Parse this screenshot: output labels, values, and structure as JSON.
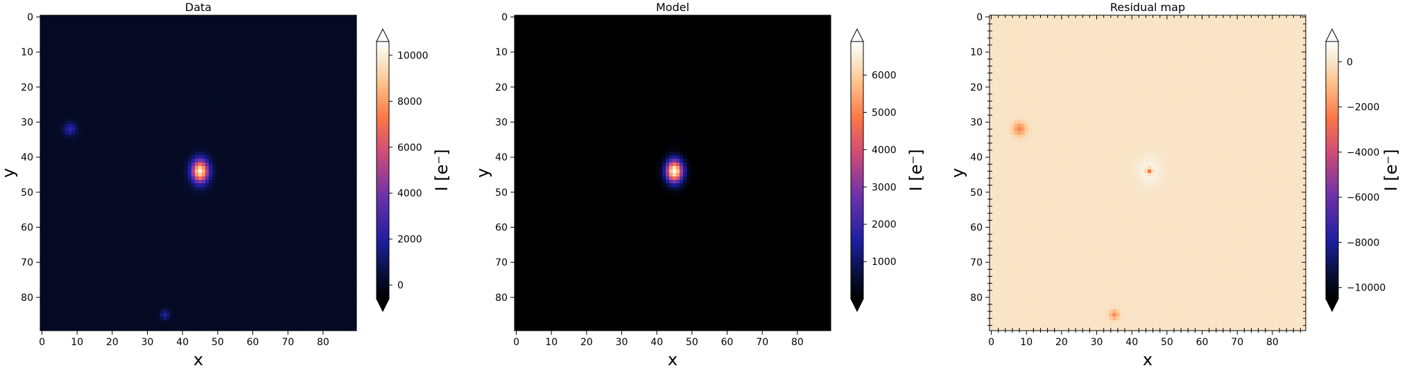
{
  "chart_data": [
    {
      "type": "heatmap",
      "title": "Data",
      "xlabel": "x",
      "ylabel": "y",
      "colorbar_label": "I [e⁻]",
      "colormap": "cmr.ember",
      "colorbar_extend": "both",
      "xlim": [
        -0.5,
        89.5
      ],
      "ylim": [
        89.5,
        -0.5
      ],
      "xticks": [
        0,
        10,
        20,
        30,
        40,
        50,
        60,
        70,
        80
      ],
      "yticks": [
        0,
        10,
        20,
        30,
        40,
        50,
        60,
        70,
        80
      ],
      "clim": [
        -600,
        10600
      ],
      "colorbar_ticks": [
        0,
        2000,
        4000,
        6000,
        8000,
        10000
      ],
      "minor_ticks": false,
      "background_level": 60,
      "sources": [
        {
          "x": 45,
          "y": 44,
          "peak": 10000,
          "sigma_x": 1.7,
          "sigma_y": 2.3
        },
        {
          "x": 8,
          "y": 32,
          "peak": 2200,
          "sigma_x": 1.3,
          "sigma_y": 1.3
        },
        {
          "x": 35,
          "y": 85,
          "peak": 2100,
          "sigma_x": 0.9,
          "sigma_y": 0.9
        }
      ]
    },
    {
      "type": "heatmap",
      "title": "Model",
      "xlabel": "x",
      "ylabel": "y",
      "colorbar_label": "I [e⁻]",
      "colormap": "cmr.ember",
      "colorbar_extend": "both",
      "xlim": [
        -0.5,
        89.5
      ],
      "ylim": [
        89.5,
        -0.5
      ],
      "xticks": [
        0,
        10,
        20,
        30,
        40,
        50,
        60,
        70,
        80
      ],
      "yticks": [
        0,
        10,
        20,
        30,
        40,
        50,
        60,
        70,
        80
      ],
      "clim": [
        0,
        6900
      ],
      "colorbar_ticks": [
        1000,
        2000,
        3000,
        4000,
        5000,
        6000
      ],
      "minor_ticks": false,
      "background_level": 0,
      "sources": [
        {
          "x": 45,
          "y": 44,
          "peak": 6900,
          "sigma_x": 1.7,
          "sigma_y": 2.3
        }
      ]
    },
    {
      "type": "heatmap",
      "title": "Residual map",
      "xlabel": "x",
      "ylabel": "y",
      "colorbar_label": "I [e⁻]",
      "colormap": "cmr.ember",
      "colorbar_extend": "both",
      "xlim": [
        -0.5,
        89.5
      ],
      "ylim": [
        89.5,
        -0.5
      ],
      "xticks": [
        0,
        10,
        20,
        30,
        40,
        50,
        60,
        70,
        80
      ],
      "yticks": [
        0,
        10,
        20,
        30,
        40,
        50,
        60,
        70,
        80
      ],
      "clim": [
        -10500,
        900
      ],
      "colorbar_ticks": [
        0,
        -2000,
        -4000,
        -6000,
        -8000,
        -10000
      ],
      "minor_ticks": true,
      "background_level": -60,
      "sources": [
        {
          "x": 8,
          "y": 32,
          "peak": -2200,
          "sigma_x": 1.3,
          "sigma_y": 1.3
        },
        {
          "x": 35,
          "y": 85,
          "peak": -2100,
          "sigma_x": 0.9,
          "sigma_y": 0.9
        },
        {
          "x": 45,
          "y": 44,
          "peak": -3100,
          "sigma_x": 0.6,
          "sigma_y": 0.6
        },
        {
          "x": 45,
          "y": 44,
          "peak": 600,
          "sigma_x": 2.2,
          "sigma_y": 2.8
        }
      ]
    }
  ]
}
